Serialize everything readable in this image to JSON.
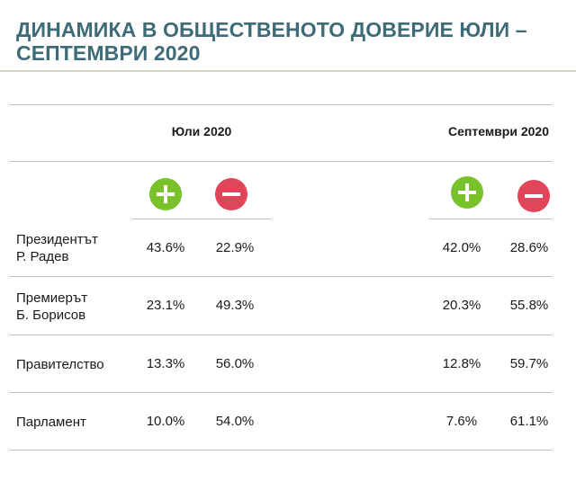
{
  "title_line1": "ДИНАМИКА В ОБЩЕСТВЕНОТО ДОВЕРИЕ ЮЛИ –",
  "title_line2": "СЕПТЕМВРИ 2020",
  "colors": {
    "title": "#3d6b78",
    "positive": "#79c12a",
    "negative": "#e0455a"
  },
  "periods": [
    {
      "label": "Юли 2020"
    },
    {
      "label": "Септември 2020"
    }
  ],
  "icons": {
    "positive": "plus-icon",
    "negative": "minus-icon"
  },
  "rows": [
    {
      "label_line1": "Президентът",
      "label_line2": "Р. Радев",
      "jul_pos": "43.6%",
      "jul_neg": "22.9%",
      "sep_pos": "42.0%",
      "sep_neg": "28.6%"
    },
    {
      "label_line1": "Премиерът",
      "label_line2": "Б. Борисов",
      "jul_pos": "23.1%",
      "jul_neg": "49.3%",
      "sep_pos": "20.3%",
      "sep_neg": "55.8%"
    },
    {
      "label_line1": "Правителство",
      "label_line2": "",
      "jul_pos": "13.3%",
      "jul_neg": "56.0%",
      "sep_pos": "12.8%",
      "sep_neg": "59.7%"
    },
    {
      "label_line1": "Парламент",
      "label_line2": "",
      "jul_pos": "10.0%",
      "jul_neg": "54.0%",
      "sep_pos": "7.6%",
      "sep_neg": "61.1%"
    }
  ]
}
